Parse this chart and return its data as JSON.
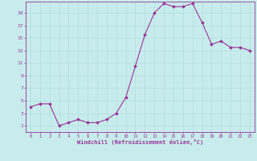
{
  "x": [
    0,
    1,
    2,
    3,
    4,
    5,
    6,
    7,
    8,
    9,
    10,
    11,
    12,
    13,
    14,
    15,
    16,
    17,
    18,
    19,
    20,
    21,
    22,
    23
  ],
  "y": [
    4,
    4.5,
    4.5,
    1,
    1.5,
    2,
    1.5,
    1.5,
    2,
    3,
    5.5,
    10.5,
    15.5,
    19,
    20.5,
    20,
    20,
    20.5,
    17.5,
    14,
    14.5,
    13.5,
    13.5,
    13
  ],
  "line_color": "#993399",
  "marker_color": "#993399",
  "bg_color": "#c8ecec",
  "grid_color": "#b0dede",
  "xlabel": "Windchill (Refroidissement éolien,°C)",
  "xlabel_color": "#993399",
  "tick_color": "#993399",
  "spine_color": "#993399",
  "yticks": [
    1,
    3,
    5,
    7,
    9,
    11,
    13,
    15,
    17,
    19
  ],
  "xticks": [
    0,
    1,
    2,
    3,
    4,
    5,
    6,
    7,
    8,
    9,
    10,
    11,
    12,
    13,
    14,
    15,
    16,
    17,
    18,
    19,
    20,
    21,
    22,
    23
  ],
  "ylim": [
    0,
    20.8
  ],
  "xlim": [
    -0.5,
    23.5
  ]
}
